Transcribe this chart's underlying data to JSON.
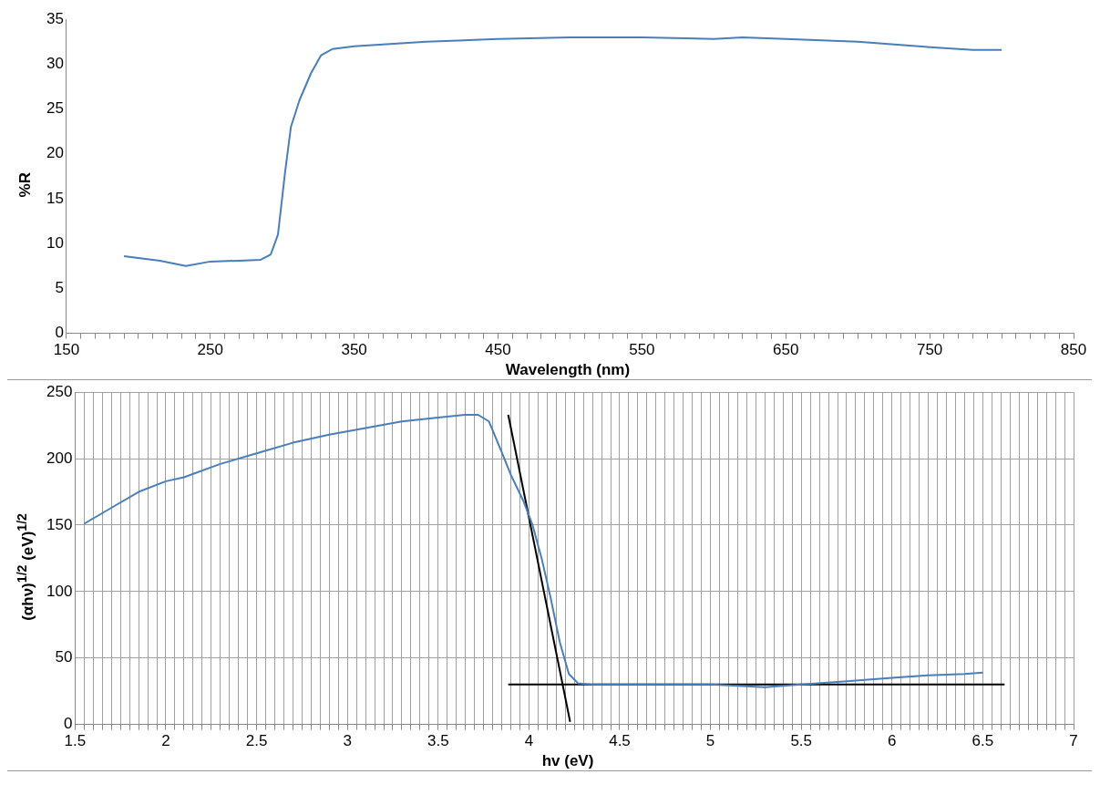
{
  "chart_data": [
    {
      "type": "line",
      "xlabel": "Wavelength (nm)",
      "ylabel": "%R",
      "xlim": [
        150,
        850
      ],
      "ylim": [
        0,
        35
      ],
      "xticks": [
        150,
        {
          "value": 160,
          "label": null
        },
        {
          "value": 170,
          "label": null
        },
        {
          "value": 180,
          "label": null
        },
        {
          "value": 190,
          "label": null
        },
        {
          "value": 200,
          "label": null
        },
        {
          "value": 210,
          "label": null
        },
        {
          "value": 220,
          "label": null
        },
        {
          "value": 230,
          "label": null
        },
        {
          "value": 240,
          "label": null
        },
        250,
        {
          "value": 260,
          "label": null
        },
        {
          "value": 270,
          "label": null
        },
        {
          "value": 280,
          "label": null
        },
        {
          "value": 290,
          "label": null
        },
        {
          "value": 300,
          "label": null
        },
        {
          "value": 310,
          "label": null
        },
        {
          "value": 320,
          "label": null
        },
        {
          "value": 330,
          "label": null
        },
        {
          "value": 340,
          "label": null
        },
        350,
        {
          "value": 360,
          "label": null
        },
        {
          "value": 370,
          "label": null
        },
        {
          "value": 380,
          "label": null
        },
        {
          "value": 390,
          "label": null
        },
        {
          "value": 400,
          "label": null
        },
        {
          "value": 410,
          "label": null
        },
        {
          "value": 420,
          "label": null
        },
        {
          "value": 430,
          "label": null
        },
        {
          "value": 440,
          "label": null
        },
        450,
        {
          "value": 460,
          "label": null
        },
        {
          "value": 470,
          "label": null
        },
        {
          "value": 480,
          "label": null
        },
        {
          "value": 490,
          "label": null
        },
        {
          "value": 500,
          "label": null
        },
        {
          "value": 510,
          "label": null
        },
        {
          "value": 520,
          "label": null
        },
        {
          "value": 530,
          "label": null
        },
        {
          "value": 540,
          "label": null
        },
        550,
        {
          "value": 560,
          "label": null
        },
        {
          "value": 570,
          "label": null
        },
        {
          "value": 580,
          "label": null
        },
        {
          "value": 590,
          "label": null
        },
        {
          "value": 600,
          "label": null
        },
        {
          "value": 610,
          "label": null
        },
        {
          "value": 620,
          "label": null
        },
        {
          "value": 630,
          "label": null
        },
        {
          "value": 640,
          "label": null
        },
        650,
        {
          "value": 660,
          "label": null
        },
        {
          "value": 670,
          "label": null
        },
        {
          "value": 680,
          "label": null
        },
        {
          "value": 690,
          "label": null
        },
        {
          "value": 700,
          "label": null
        },
        {
          "value": 710,
          "label": null
        },
        {
          "value": 720,
          "label": null
        },
        {
          "value": 730,
          "label": null
        },
        {
          "value": 740,
          "label": null
        },
        750,
        {
          "value": 760,
          "label": null
        },
        {
          "value": 770,
          "label": null
        },
        {
          "value": 780,
          "label": null
        },
        {
          "value": 790,
          "label": null
        },
        {
          "value": 800,
          "label": null
        },
        {
          "value": 810,
          "label": null
        },
        {
          "value": 820,
          "label": null
        },
        {
          "value": 830,
          "label": null
        },
        {
          "value": 840,
          "label": null
        },
        850
      ],
      "yticks": [
        0,
        5,
        10,
        15,
        20,
        25,
        30,
        35
      ],
      "grid": false,
      "legend": false,
      "marker": "none",
      "series": [
        {
          "color": "#4a7ebb",
          "x": [
            190,
            200,
            215,
            233,
            250,
            270,
            285,
            292,
            297,
            302,
            306,
            312,
            320,
            327,
            335,
            350,
            400,
            450,
            500,
            550,
            600,
            620,
            650,
            700,
            750,
            780,
            800
          ],
          "values": [
            8.6,
            8.4,
            8.1,
            7.5,
            8.0,
            8.1,
            8.2,
            8.8,
            11,
            18,
            23,
            26,
            29,
            31,
            31.7,
            32,
            32.5,
            32.8,
            33,
            33,
            32.8,
            33,
            32.8,
            32.5,
            31.9,
            31.6,
            31.6
          ]
        }
      ]
    },
    {
      "type": "line",
      "xlabel": "hv (eV)",
      "ylabel": "(αhν)$^{1/2}$ (eV)$^{1/2}$",
      "xlim": [
        1.5,
        7
      ],
      "ylim": [
        0,
        250
      ],
      "xticks": [
        1.5,
        {
          "value": 1.55,
          "label": null
        },
        {
          "value": 1.6,
          "label": null
        },
        {
          "value": 1.65,
          "label": null
        },
        {
          "value": 1.7,
          "label": null
        },
        {
          "value": 1.75,
          "label": null
        },
        {
          "value": 1.8,
          "label": null
        },
        {
          "value": 1.85,
          "label": null
        },
        {
          "value": 1.9,
          "label": null
        },
        {
          "value": 1.95,
          "label": null
        },
        2,
        {
          "value": 2.05,
          "label": null
        },
        {
          "value": 2.1,
          "label": null
        },
        {
          "value": 2.15,
          "label": null
        },
        {
          "value": 2.2,
          "label": null
        },
        {
          "value": 2.25,
          "label": null
        },
        {
          "value": 2.3,
          "label": null
        },
        {
          "value": 2.35,
          "label": null
        },
        {
          "value": 2.4,
          "label": null
        },
        {
          "value": 2.45,
          "label": null
        },
        2.5,
        {
          "value": 2.55,
          "label": null
        },
        {
          "value": 2.6,
          "label": null
        },
        {
          "value": 2.65,
          "label": null
        },
        {
          "value": 2.7,
          "label": null
        },
        {
          "value": 2.75,
          "label": null
        },
        {
          "value": 2.8,
          "label": null
        },
        {
          "value": 2.85,
          "label": null
        },
        {
          "value": 2.9,
          "label": null
        },
        {
          "value": 2.95,
          "label": null
        },
        3,
        {
          "value": 3.05,
          "label": null
        },
        {
          "value": 3.1,
          "label": null
        },
        {
          "value": 3.15,
          "label": null
        },
        {
          "value": 3.2,
          "label": null
        },
        {
          "value": 3.25,
          "label": null
        },
        {
          "value": 3.3,
          "label": null
        },
        {
          "value": 3.35,
          "label": null
        },
        {
          "value": 3.4,
          "label": null
        },
        {
          "value": 3.45,
          "label": null
        },
        3.5,
        {
          "value": 3.55,
          "label": null
        },
        {
          "value": 3.6,
          "label": null
        },
        {
          "value": 3.65,
          "label": null
        },
        {
          "value": 3.7,
          "label": null
        },
        {
          "value": 3.75,
          "label": null
        },
        {
          "value": 3.8,
          "label": null
        },
        {
          "value": 3.85,
          "label": null
        },
        {
          "value": 3.9,
          "label": null
        },
        {
          "value": 3.95,
          "label": null
        },
        4,
        {
          "value": 4.05,
          "label": null
        },
        {
          "value": 4.1,
          "label": null
        },
        {
          "value": 4.15,
          "label": null
        },
        {
          "value": 4.2,
          "label": null
        },
        {
          "value": 4.25,
          "label": null
        },
        {
          "value": 4.3,
          "label": null
        },
        {
          "value": 4.35,
          "label": null
        },
        {
          "value": 4.4,
          "label": null
        },
        {
          "value": 4.45,
          "label": null
        },
        4.5,
        {
          "value": 4.55,
          "label": null
        },
        {
          "value": 4.6,
          "label": null
        },
        {
          "value": 4.65,
          "label": null
        },
        {
          "value": 4.7,
          "label": null
        },
        {
          "value": 4.75,
          "label": null
        },
        {
          "value": 4.8,
          "label": null
        },
        {
          "value": 4.85,
          "label": null
        },
        {
          "value": 4.9,
          "label": null
        },
        {
          "value": 4.95,
          "label": null
        },
        5,
        {
          "value": 5.05,
          "label": null
        },
        {
          "value": 5.1,
          "label": null
        },
        {
          "value": 5.15,
          "label": null
        },
        {
          "value": 5.2,
          "label": null
        },
        {
          "value": 5.25,
          "label": null
        },
        {
          "value": 5.3,
          "label": null
        },
        {
          "value": 5.35,
          "label": null
        },
        {
          "value": 5.4,
          "label": null
        },
        {
          "value": 5.45,
          "label": null
        },
        5.5,
        {
          "value": 5.55,
          "label": null
        },
        {
          "value": 5.6,
          "label": null
        },
        {
          "value": 5.65,
          "label": null
        },
        {
          "value": 5.7,
          "label": null
        },
        {
          "value": 5.75,
          "label": null
        },
        {
          "value": 5.8,
          "label": null
        },
        {
          "value": 5.85,
          "label": null
        },
        {
          "value": 5.9,
          "label": null
        },
        {
          "value": 5.95,
          "label": null
        },
        6,
        {
          "value": 6.05,
          "label": null
        },
        {
          "value": 6.1,
          "label": null
        },
        {
          "value": 6.15,
          "label": null
        },
        {
          "value": 6.2,
          "label": null
        },
        {
          "value": 6.25,
          "label": null
        },
        {
          "value": 6.3,
          "label": null
        },
        {
          "value": 6.35,
          "label": null
        },
        {
          "value": 6.4,
          "label": null
        },
        {
          "value": 6.45,
          "label": null
        },
        6.5,
        {
          "value": 6.55,
          "label": null
        },
        {
          "value": 6.6,
          "label": null
        },
        {
          "value": 6.65,
          "label": null
        },
        {
          "value": 6.7,
          "label": null
        },
        {
          "value": 6.75,
          "label": null
        },
        {
          "value": 6.8,
          "label": null
        },
        {
          "value": 6.85,
          "label": null
        },
        {
          "value": 6.9,
          "label": null
        },
        {
          "value": 6.95,
          "label": null
        },
        7
      ],
      "yticks": [
        0,
        50,
        100,
        150,
        200,
        250
      ],
      "grid": true,
      "legend": false,
      "marker": "none",
      "series": [
        {
          "color": "#4a7ebb",
          "x": [
            1.55,
            1.7,
            1.85,
            2.0,
            2.1,
            2.3,
            2.5,
            2.7,
            2.9,
            3.1,
            3.3,
            3.5,
            3.65,
            3.72,
            3.78,
            3.85,
            3.9,
            3.97,
            4.02,
            4.07,
            4.12,
            4.17,
            4.22,
            4.27,
            4.35,
            4.5,
            5.0,
            5.3,
            5.5,
            5.7,
            5.9,
            6.0,
            6.2,
            6.4,
            6.5
          ],
          "values": [
            151,
            163,
            175,
            183,
            186,
            196,
            204,
            212,
            218,
            223,
            228,
            231,
            233,
            233,
            228,
            205,
            188,
            168,
            150,
            125,
            95,
            62,
            38,
            31,
            30,
            30,
            30,
            28,
            30,
            32,
            34,
            35,
            37,
            38,
            39
          ]
        },
        {
          "color": "#000000",
          "x": [
            3.886,
            4.227
          ],
          "values": [
            233,
            2
          ]
        },
        {
          "color": "#000000",
          "x": [
            3.886,
            6.62
          ],
          "values": [
            30,
            30
          ]
        }
      ]
    }
  ]
}
